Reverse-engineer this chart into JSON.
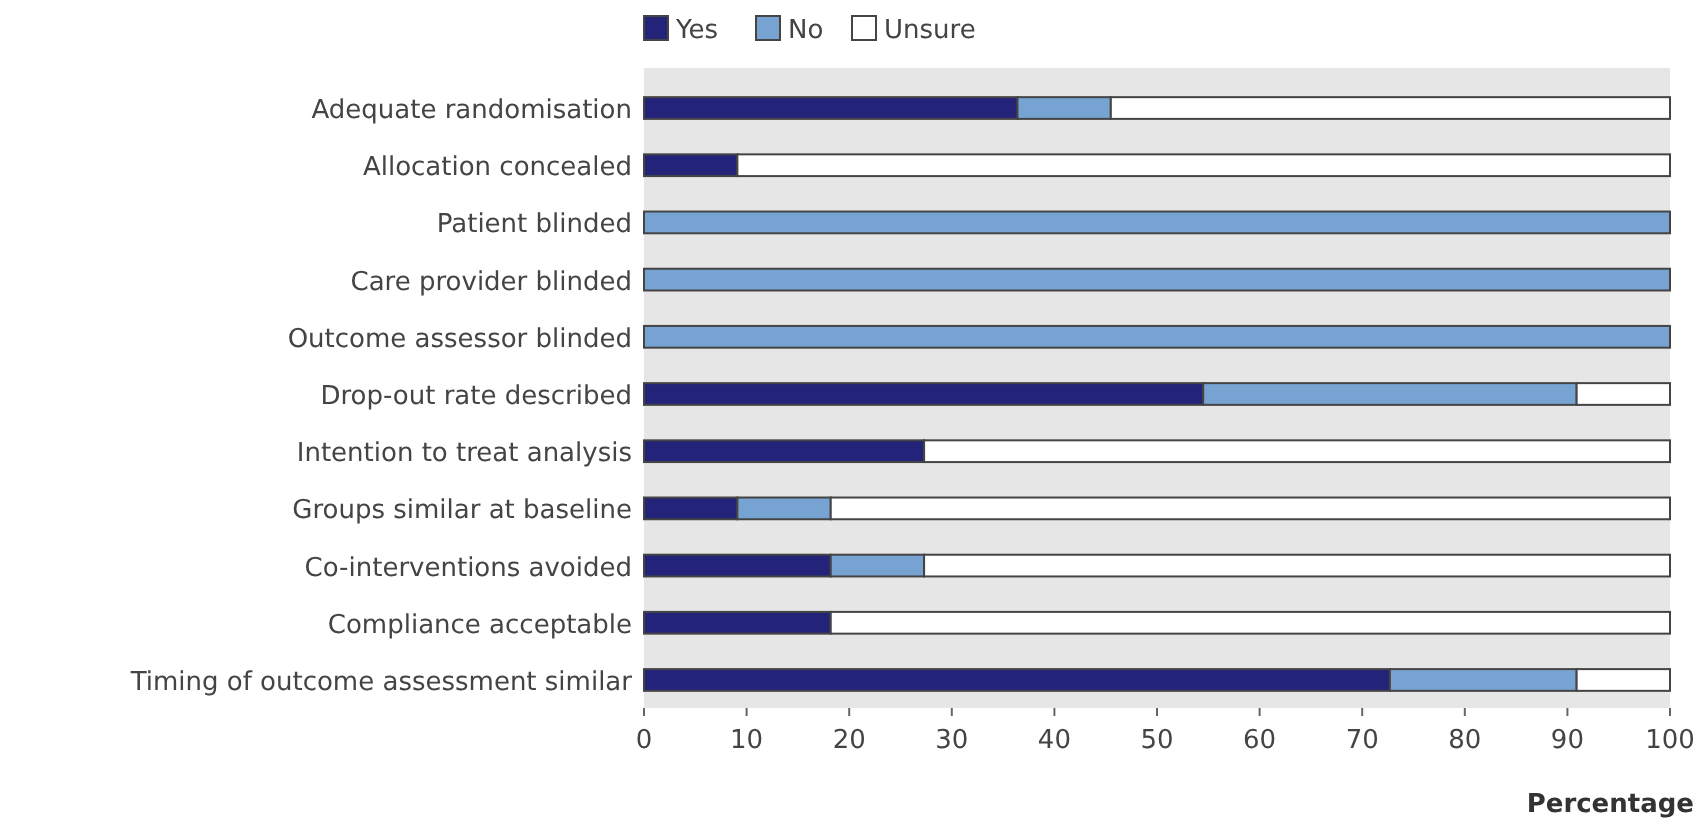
{
  "chart_data": {
    "type": "bar",
    "orientation": "horizontal",
    "stacked": true,
    "xlabel": "Percentage",
    "legend": "top",
    "grid": false,
    "categories": [
      "Adequate randomisation",
      "Allocation concealed",
      "Patient blinded",
      "Care provider blinded",
      "Outcome assessor blinded",
      "Drop-out rate described",
      "Intention to treat analysis",
      "Groups similar at baseline",
      "Co-interventions avoided",
      "Compliance acceptable",
      "Timing of outcome assessment similar"
    ],
    "series": [
      {
        "name": "Yes",
        "color": "#24237a",
        "values": [
          36.4,
          9.1,
          0,
          0,
          0,
          54.5,
          27.3,
          9.1,
          18.2,
          18.2,
          72.7
        ]
      },
      {
        "name": "No",
        "color": "#77a3d3",
        "values": [
          9.1,
          0,
          100,
          100,
          100,
          36.4,
          0,
          9.1,
          9.1,
          0,
          18.2
        ]
      },
      {
        "name": "Unsure",
        "color": "#ffffff",
        "values": [
          54.5,
          90.9,
          0,
          0,
          0,
          9.1,
          72.7,
          81.8,
          72.7,
          81.8,
          9.1
        ]
      }
    ],
    "xlim": [
      0,
      100
    ],
    "xticks": [
      0,
      10,
      20,
      30,
      40,
      50,
      60,
      70,
      80,
      90,
      100
    ]
  }
}
